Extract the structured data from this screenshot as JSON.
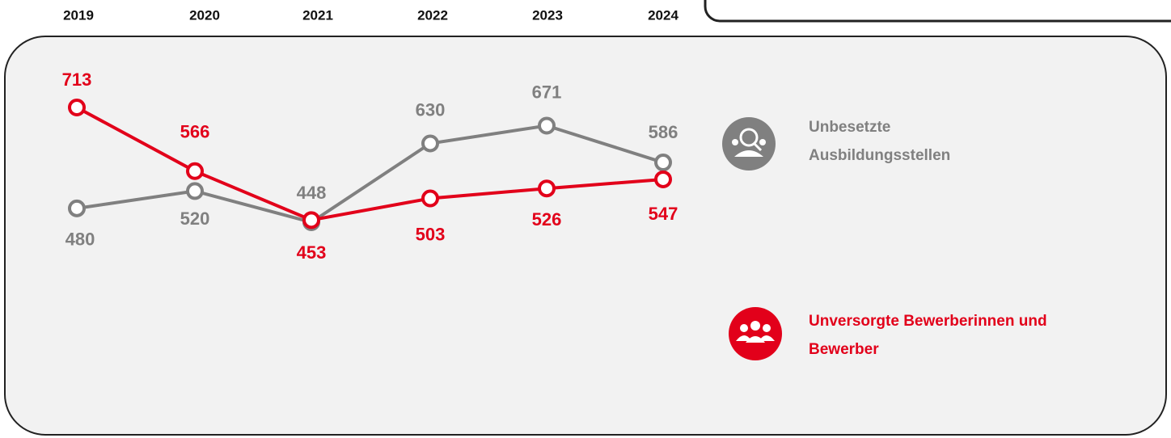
{
  "chart_data": {
    "type": "line",
    "categories": [
      "2019",
      "2020",
      "2021",
      "2022",
      "2023",
      "2024"
    ],
    "series": [
      {
        "name": "Unbesetzte Ausbildungsstellen",
        "color": "#808080",
        "values": [
          480,
          520,
          448,
          630,
          671,
          586
        ]
      },
      {
        "name": "Unversorgte Bewerberinnen und Bewerber",
        "color": "#e2001a",
        "values": [
          713,
          566,
          453,
          503,
          526,
          547
        ]
      }
    ]
  }
}
